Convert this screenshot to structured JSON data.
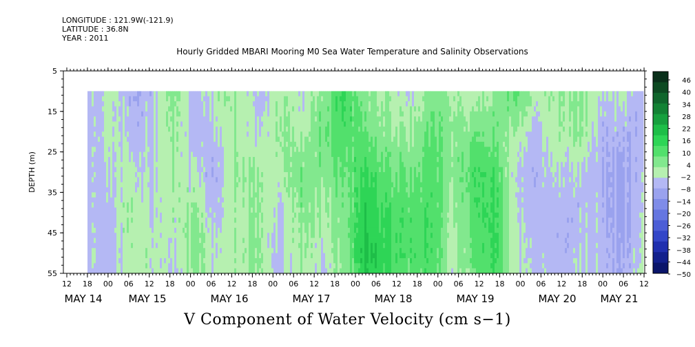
{
  "header": {
    "longitude": "LONGITUDE : 121.9W(-121.9)",
    "latitude": "LATITUDE : 36.8N",
    "year": "YEAR : 2011"
  },
  "chart_data": {
    "type": "heatmap",
    "title": "Hourly Gridded MBARI Mooring M0 Sea Water Temperature and Salinity Observations",
    "xlabel": "V Component of Water Velocity (cm s−1)",
    "ylabel": "DEPTH (m)",
    "ylim": [
      5,
      55
    ],
    "y_inverted": true,
    "y_ticks": [
      5,
      15,
      25,
      35,
      45,
      55
    ],
    "data_depth_range": [
      10,
      55
    ],
    "x_hour_labels": [
      "12",
      "18",
      "00",
      "06",
      "12",
      "18",
      "00",
      "06",
      "12",
      "18",
      "00",
      "06",
      "12",
      "18",
      "00",
      "06",
      "12",
      "18",
      "00",
      "06",
      "12",
      "18",
      "00",
      "06",
      "12",
      "18",
      "00",
      "06",
      "12",
      "18",
      "00",
      "06"
    ],
    "x_date_labels": [
      "MAY 14",
      "MAY 15",
      "MAY 16",
      "MAY 17",
      "MAY 18",
      "MAY 19",
      "MAY 20",
      "MAY 21"
    ],
    "colorbar_labels": [
      "46",
      "40",
      "34",
      "28",
      "22",
      "16",
      "10",
      "4",
      "−2",
      "−8",
      "−14",
      "−20",
      "−26",
      "−32",
      "−38",
      "−44",
      "−50"
    ],
    "colorbar_range": [
      -50,
      52
    ],
    "colorbar_colors": [
      "#0a2f1a",
      "#0d4a22",
      "#10662c",
      "#138234",
      "#17a03e",
      "#1ebe48",
      "#2ed556",
      "#52e06c",
      "#82e88e",
      "#b6f0b0",
      "#b4b8f4",
      "#9aa2ee",
      "#7f8ce8",
      "#6576e0",
      "#4c5ed6",
      "#3346c8",
      "#1f2fae",
      "#12208c",
      "#0a156a"
    ],
    "time_columns_v_by_depth": {
      "depths_m": [
        10,
        20,
        30,
        40,
        50,
        55
      ],
      "columns": [
        {
          "time": "MAY 14 18",
          "v": [
            -6,
            -5,
            -4,
            -4,
            -3,
            -3
          ]
        },
        {
          "time": "MAY 15 00",
          "v": [
            2,
            1,
            -1,
            -3,
            -4,
            -4
          ]
        },
        {
          "time": "MAY 15 06",
          "v": [
            -7,
            -4,
            1,
            3,
            2,
            1
          ]
        },
        {
          "time": "MAY 15 12",
          "v": [
            -4,
            -3,
            -2,
            -1,
            1,
            0
          ]
        },
        {
          "time": "MAY 15 18",
          "v": [
            6,
            5,
            3,
            1,
            -2,
            -3
          ]
        },
        {
          "time": "MAY 16 00",
          "v": [
            -6,
            -7,
            -2,
            4,
            5,
            4
          ]
        },
        {
          "time": "MAY 16 06",
          "v": [
            2,
            -2,
            -6,
            -4,
            -1,
            0
          ]
        },
        {
          "time": "MAY 16 12",
          "v": [
            4,
            3,
            5,
            2,
            3,
            2
          ]
        },
        {
          "time": "MAY 16 18",
          "v": [
            -5,
            -3,
            3,
            4,
            5,
            3
          ]
        },
        {
          "time": "MAY 17 00",
          "v": [
            4,
            6,
            2,
            -2,
            -3,
            -3
          ]
        },
        {
          "time": "MAY 17 06",
          "v": [
            -2,
            2,
            8,
            6,
            4,
            3
          ]
        },
        {
          "time": "MAY 17 12",
          "v": [
            6,
            9,
            6,
            3,
            -1,
            -2
          ]
        },
        {
          "time": "MAY 17 18",
          "v": [
            16,
            12,
            8,
            6,
            5,
            4
          ]
        },
        {
          "time": "MAY 18 00",
          "v": [
            5,
            10,
            16,
            20,
            22,
            20
          ]
        },
        {
          "time": "MAY 18 06",
          "v": [
            2,
            5,
            10,
            14,
            16,
            14
          ]
        },
        {
          "time": "MAY 18 12",
          "v": [
            -2,
            3,
            8,
            12,
            12,
            10
          ]
        },
        {
          "time": "MAY 18 18",
          "v": [
            6,
            10,
            12,
            14,
            14,
            12
          ]
        },
        {
          "time": "MAY 19 00",
          "v": [
            4,
            6,
            5,
            3,
            2,
            1
          ]
        },
        {
          "time": "MAY 19 06",
          "v": [
            -1,
            6,
            12,
            10,
            8,
            6
          ]
        },
        {
          "time": "MAY 19 12",
          "v": [
            4,
            8,
            14,
            16,
            16,
            14
          ]
        },
        {
          "time": "MAY 19 18",
          "v": [
            10,
            2,
            -3,
            -2,
            -1,
            0
          ]
        },
        {
          "time": "MAY 20 00",
          "v": [
            2,
            -3,
            -5,
            -4,
            -2,
            -2
          ]
        },
        {
          "time": "MAY 20 06",
          "v": [
            3,
            2,
            -2,
            -5,
            -6,
            -5
          ]
        },
        {
          "time": "MAY 20 12",
          "v": [
            6,
            5,
            -3,
            -4,
            -3,
            -3
          ]
        },
        {
          "time": "MAY 20 18",
          "v": [
            -2,
            -4,
            -6,
            -4,
            -3,
            -3
          ]
        },
        {
          "time": "MAY 21 00",
          "v": [
            2,
            -5,
            -7,
            -8,
            -6,
            -5
          ]
        },
        {
          "time": "MAY 21 06",
          "v": [
            -8,
            -6,
            -4,
            -3,
            -2,
            -2
          ]
        }
      ]
    }
  }
}
